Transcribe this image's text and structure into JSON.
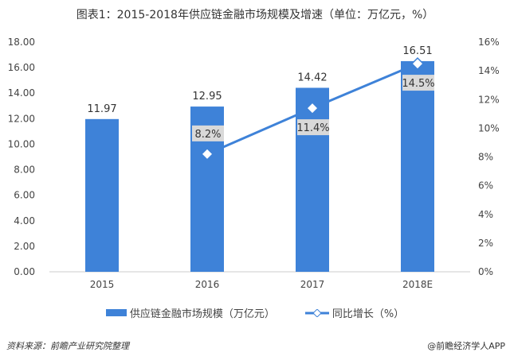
{
  "title": "图表1：2015-2018年供应链金融市场规模及增速（单位：万亿元，%）",
  "chart_data": {
    "type": "bar+line",
    "categories": [
      "2015",
      "2016",
      "2017",
      "2018E"
    ],
    "series": [
      {
        "name": "供应链金融市场规模（万亿元）",
        "type": "bar",
        "axis": "left",
        "values": [
          11.97,
          12.95,
          14.42,
          16.51
        ],
        "labels": [
          "11.97",
          "12.95",
          "14.42",
          "16.51"
        ],
        "color": "#3e82d8"
      },
      {
        "name": "同比增长（%）",
        "type": "line",
        "axis": "right",
        "values": [
          null,
          8.2,
          11.4,
          14.5
        ],
        "labels": [
          "",
          "8.2%",
          "11.4%",
          "14.5%"
        ],
        "color": "#3e82d8"
      }
    ],
    "left_axis": {
      "ylim": [
        0,
        18
      ],
      "ticks": [
        "0.00",
        "2.00",
        "4.00",
        "6.00",
        "8.00",
        "10.00",
        "12.00",
        "14.00",
        "16.00",
        "18.00"
      ]
    },
    "right_axis": {
      "ylim": [
        0,
        16
      ],
      "ticks": [
        "0%",
        "2%",
        "4%",
        "6%",
        "8%",
        "10%",
        "12%",
        "14%",
        "16%"
      ]
    },
    "grid": false,
    "legend": "bottom"
  },
  "legend": {
    "bar": "供应链金融市场规模（万亿元）",
    "line": "同比增长（%）"
  },
  "source": "资料来源：前瞻产业研究院整理",
  "credit": "@前瞻经济学人APP"
}
